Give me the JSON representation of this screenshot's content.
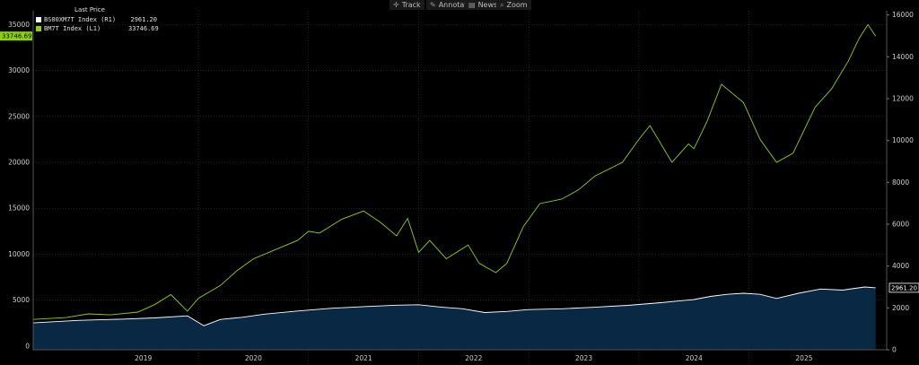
{
  "toolbar": {
    "track_label": "Track",
    "annotate_label": "Annotate",
    "news_label": "News",
    "zoom_label": "Zoom"
  },
  "legend": {
    "header": "Last Price",
    "items": [
      {
        "name": "BS00XM7T Index  (R1)",
        "value": "2961.20",
        "color": "#ffffff"
      },
      {
        "name": "BM7T Index  (L1)",
        "value": "33746.69",
        "color": "#8fd400"
      }
    ]
  },
  "chart_data": {
    "type": "line",
    "x_labels": [
      "2019",
      "2020",
      "2021",
      "2022",
      "2023",
      "2024",
      "2025"
    ],
    "left_axis": {
      "ticks": [
        0,
        5000,
        10000,
        15000,
        20000,
        25000,
        30000,
        35000
      ],
      "range": [
        -400,
        36500
      ]
    },
    "right_axis": {
      "ticks": [
        0,
        2000,
        4000,
        6000,
        8000,
        10000,
        12000,
        14000,
        16000
      ],
      "range": [
        0,
        16200
      ]
    },
    "grid": true,
    "series": [
      {
        "name": "BM7T Index  (L1)",
        "axis": "left",
        "color": "#8fd400",
        "last_value": "33746.69",
        "x": [
          2018.5,
          2018.8,
          2019.0,
          2019.2,
          2019.45,
          2019.6,
          2019.75,
          2019.9,
          2020.0,
          2020.1,
          2020.2,
          2020.35,
          2020.5,
          2020.7,
          2020.9,
          2021.0,
          2021.1,
          2021.3,
          2021.5,
          2021.65,
          2021.8,
          2021.9,
          2022.0,
          2022.1,
          2022.25,
          2022.45,
          2022.55,
          2022.7,
          2022.8,
          2022.95,
          2023.1,
          2023.3,
          2023.45,
          2023.6,
          2023.85,
          2024.0,
          2024.1,
          2024.3,
          2024.45,
          2024.5,
          2024.62,
          2024.75,
          2024.85,
          2024.95,
          2025.1,
          2025.25,
          2025.4,
          2025.6,
          2025.75,
          2025.9,
          2026.0,
          2026.08,
          2026.15
        ],
        "y": [
          2900,
          3100,
          3500,
          3400,
          3700,
          4500,
          5600,
          3800,
          5200,
          5900,
          6600,
          8200,
          9500,
          10500,
          11500,
          12500,
          12300,
          13800,
          14700,
          13500,
          12000,
          13900,
          10200,
          11500,
          9500,
          11000,
          9000,
          8000,
          9000,
          13000,
          15500,
          16000,
          17000,
          18500,
          20000,
          22500,
          24000,
          20000,
          22000,
          21500,
          24500,
          28500,
          27500,
          26500,
          22500,
          20000,
          21000,
          26000,
          28000,
          31000,
          33500,
          35000,
          33746.69
        ]
      },
      {
        "name": "BS00XM7T Index  (R1)",
        "axis": "right",
        "color": "#ffffff",
        "fill": "#0a2a48",
        "last_value": "2961.20",
        "x": [
          2018.5,
          2018.9,
          2019.3,
          2019.6,
          2019.9,
          2020.05,
          2020.2,
          2020.4,
          2020.6,
          2020.9,
          2021.2,
          2021.5,
          2021.8,
          2022.0,
          2022.2,
          2022.4,
          2022.6,
          2022.8,
          2023.0,
          2023.3,
          2023.6,
          2023.9,
          2024.2,
          2024.5,
          2024.65,
          2024.8,
          2024.95,
          2025.1,
          2025.25,
          2025.45,
          2025.65,
          2025.85,
          2026.05,
          2026.15
        ],
        "y": [
          1280,
          1400,
          1460,
          1520,
          1620,
          1150,
          1450,
          1550,
          1700,
          1850,
          1980,
          2060,
          2130,
          2150,
          2040,
          1960,
          1780,
          1830,
          1920,
          1960,
          2030,
          2120,
          2250,
          2400,
          2550,
          2650,
          2700,
          2650,
          2450,
          2700,
          2900,
          2850,
          3000,
          2961.2
        ]
      }
    ]
  }
}
